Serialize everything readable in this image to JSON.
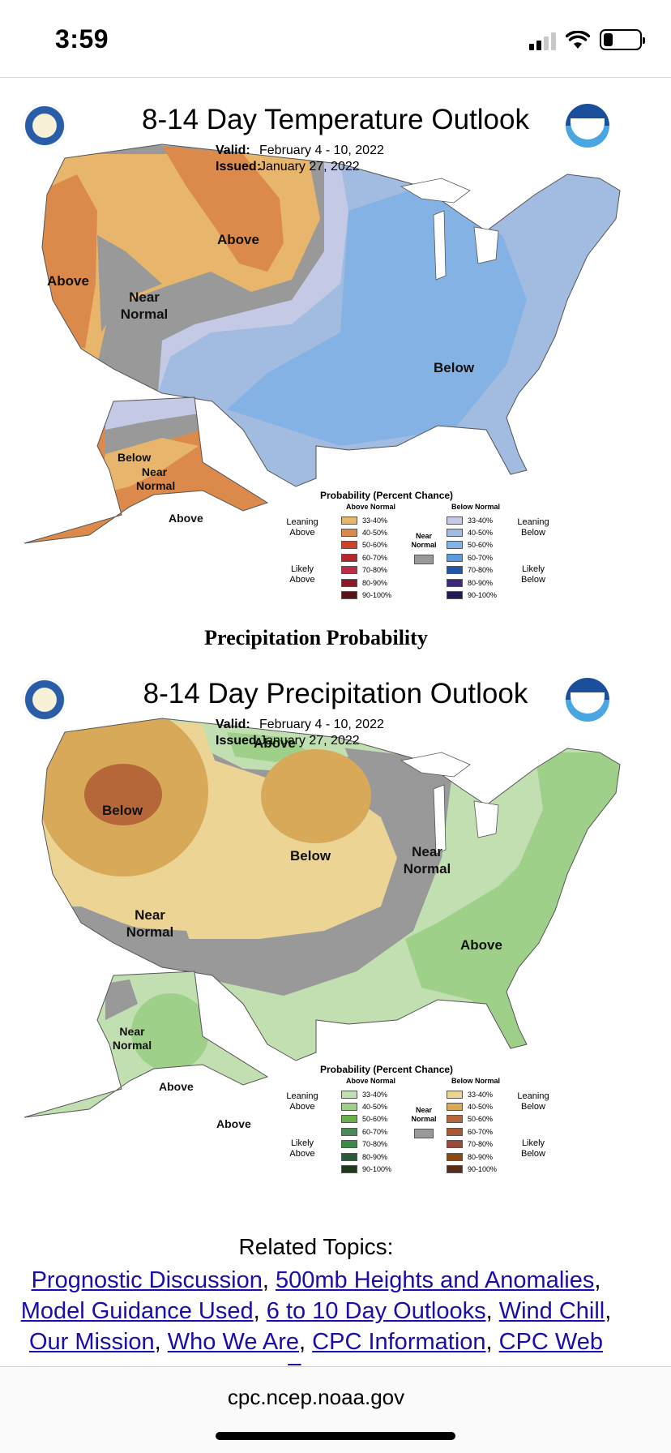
{
  "status": {
    "time": "3:59",
    "signal_bars": 2,
    "battery_level": 0.25
  },
  "temp_outlook": {
    "title": "8-14 Day Temperature Outlook",
    "valid_label": "Valid:",
    "valid": "February 4 - 10, 2022",
    "issued_label": "Issued:",
    "issued": "January 27, 2022",
    "regions": [
      {
        "label": "Above"
      },
      {
        "label": "Above"
      },
      {
        "label": "Near Normal"
      },
      {
        "label": "Below"
      },
      {
        "label": "Below"
      },
      {
        "label": "Near Normal"
      },
      {
        "label": "Above"
      }
    ],
    "legend": {
      "title": "Probability (Percent Chance)",
      "above_header": "Above Normal",
      "below_header": "Below Normal",
      "near_label": "Near Normal",
      "leaning_above": "Leaning Above",
      "likely_above": "Likely Above",
      "leaning_below": "Leaning Below",
      "likely_below": "Likely Below",
      "rows": [
        "33-40%",
        "40-50%",
        "50-60%",
        "60-70%",
        "70-80%",
        "80-90%",
        "90-100%"
      ],
      "above_colors": [
        "#e8b56c",
        "#dc8a4b",
        "#c8442b",
        "#b6262a",
        "#c02b4a",
        "#8a1a2a",
        "#5a1416"
      ],
      "below_colors": [
        "#c4cae6",
        "#a2bbe0",
        "#85b2e4",
        "#5c98dc",
        "#2356a8",
        "#3d2a7a",
        "#221a55"
      ]
    }
  },
  "precip_heading": "Precipitation Probability",
  "precip_outlook": {
    "title": "8-14 Day Precipitation Outlook",
    "valid_label": "Valid:",
    "valid": "February 4 - 10, 2022",
    "issued_label": "Issued:",
    "issued": "January 27, 2022",
    "regions": [
      {
        "label": "Above"
      },
      {
        "label": "Below"
      },
      {
        "label": "Below"
      },
      {
        "label": "Near Normal"
      },
      {
        "label": "Near Normal"
      },
      {
        "label": "Above"
      },
      {
        "label": "Near Normal"
      },
      {
        "label": "Above"
      },
      {
        "label": "Above"
      }
    ],
    "legend": {
      "title": "Probability (Percent Chance)",
      "above_header": "Above Normal",
      "below_header": "Below Normal",
      "near_label": "Near Normal",
      "leaning_above": "Leaning Above",
      "likely_above": "Likely Above",
      "leaning_below": "Leaning Below",
      "likely_below": "Likely Below",
      "rows": [
        "33-40%",
        "40-50%",
        "50-60%",
        "60-70%",
        "70-80%",
        "80-90%",
        "90-100%"
      ],
      "above_colors": [
        "#c2dfb2",
        "#9fd08a",
        "#6ab04a",
        "#4a8a58",
        "#3a8a48",
        "#2a5a3a",
        "#1e3a1a"
      ],
      "below_colors": [
        "#ecd495",
        "#d9a95a",
        "#b5673a",
        "#a85a34",
        "#9a4a3a",
        "#8a4a14",
        "#5a2a1a"
      ]
    }
  },
  "related": {
    "title": "Related Topics:",
    "links": [
      "Prognostic Discussion",
      "500mb Heights and Anomalies",
      "Model Guidance Used",
      "6 to 10 Day Outlooks",
      "Wind Chill",
      "Our Mission",
      "Who We Are",
      "CPC Information",
      "CPC Web Team"
    ]
  },
  "browser": {
    "url": "cpc.ncep.noaa.gov"
  },
  "colors": {
    "near_normal": "#9b9b9b",
    "link": "#1a0dab"
  }
}
